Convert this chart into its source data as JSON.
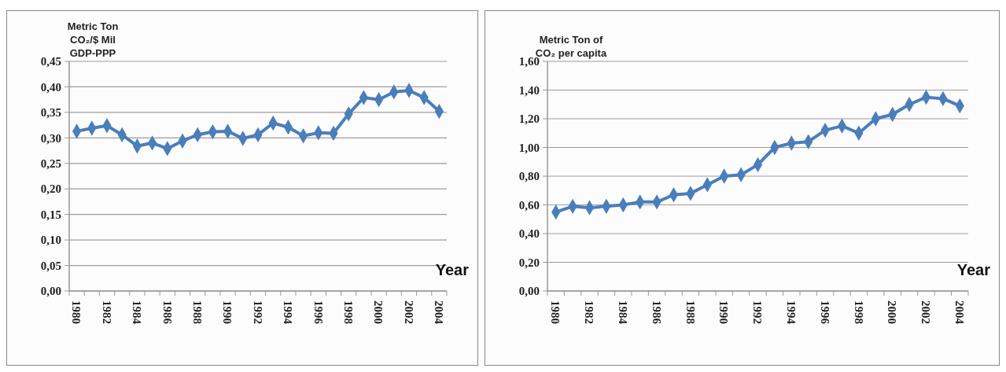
{
  "chart_data": [
    {
      "type": "line",
      "ylabel": "Metric Ton\nCO₂/$ Mil\nGDP-PPP",
      "xlabel": "Year",
      "categories": [
        "1980",
        null,
        "1982",
        null,
        "1984",
        null,
        "1986",
        null,
        "1988",
        null,
        "1990",
        null,
        "1992",
        null,
        "1994",
        null,
        "1996",
        null,
        "1998",
        null,
        "2000",
        null,
        "2002",
        null,
        "2004"
      ],
      "series": [
        {
          "color": "#4a7ebb",
          "values": [
            0.313,
            0.319,
            0.324,
            0.306,
            0.284,
            0.29,
            0.279,
            0.294,
            0.306,
            0.312,
            0.313,
            0.299,
            0.306,
            0.329,
            0.321,
            0.304,
            0.31,
            0.309,
            0.347,
            0.379,
            0.375,
            0.39,
            0.393,
            0.379,
            0.352
          ]
        }
      ],
      "ylim": [
        0,
        0.45
      ],
      "yticks": [
        {
          "value": 0,
          "label": "0,00"
        },
        {
          "value": 0.05,
          "label": "0,05"
        },
        {
          "value": 0.1,
          "label": "0,10"
        },
        {
          "value": 0.15,
          "label": "0,15"
        },
        {
          "value": 0.2,
          "label": "0,20"
        },
        {
          "value": 0.25,
          "label": "0,25"
        },
        {
          "value": 0.3,
          "label": "0,30"
        },
        {
          "value": 0.35,
          "label": "0,35"
        },
        {
          "value": 0.4,
          "label": "0,40"
        },
        {
          "value": 0.45,
          "label": "0,45"
        }
      ],
      "grid": "y",
      "marker": "diamond"
    },
    {
      "type": "line",
      "ylabel": "Metric Ton of\nCO₂ per capita",
      "xlabel": "Year",
      "categories": [
        "1980",
        null,
        "1982",
        null,
        "1984",
        null,
        "1986",
        null,
        "1988",
        null,
        "1990",
        null,
        "1992",
        null,
        "1994",
        null,
        "1996",
        null,
        "1998",
        null,
        "2000",
        null,
        "2002",
        null,
        "2004"
      ],
      "series": [
        {
          "color": "#4a7ebb",
          "values": [
            0.55,
            0.59,
            0.58,
            0.59,
            0.6,
            0.62,
            0.62,
            0.67,
            0.68,
            0.74,
            0.8,
            0.81,
            0.88,
            1.0,
            1.03,
            1.04,
            1.12,
            1.15,
            1.1,
            1.2,
            1.23,
            1.3,
            1.35,
            1.34,
            1.29
          ]
        }
      ],
      "ylim": [
        0,
        1.6
      ],
      "yticks": [
        {
          "value": 0,
          "label": "0,00"
        },
        {
          "value": 0.2,
          "label": "0,20"
        },
        {
          "value": 0.4,
          "label": "0,40"
        },
        {
          "value": 0.6,
          "label": "0,60"
        },
        {
          "value": 0.8,
          "label": "0,80"
        },
        {
          "value": 1.0,
          "label": "1,00"
        },
        {
          "value": 1.2,
          "label": "1,20"
        },
        {
          "value": 1.4,
          "label": "1,40"
        },
        {
          "value": 1.6,
          "label": "1,60"
        }
      ],
      "grid": "y",
      "marker": "diamond"
    }
  ]
}
